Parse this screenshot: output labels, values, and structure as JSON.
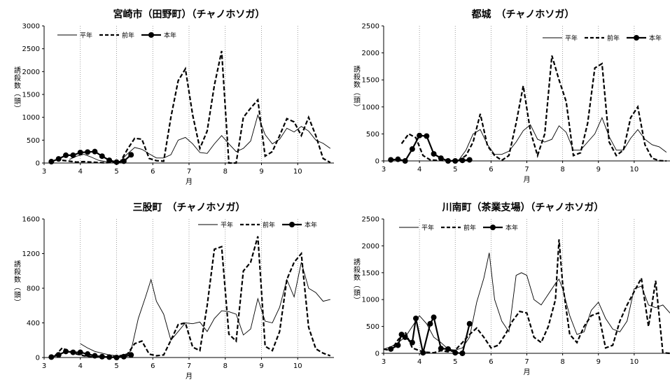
{
  "chart_data": [
    {
      "type": "line",
      "title": "宮崎市（田野町）（チャノホソガ）",
      "xlabel": "月",
      "ylabel": "誘殺数（頭）",
      "xlim": [
        3,
        11
      ],
      "ylim": [
        0,
        3000
      ],
      "yticks": [
        0,
        500,
        1000,
        1500,
        2000,
        2500,
        3000
      ],
      "xticks": [
        3,
        4,
        5,
        6,
        7,
        8,
        9,
        10
      ],
      "vlines": [
        4,
        5,
        6,
        7,
        8,
        9,
        10
      ],
      "legend": "top-left",
      "series": [
        {
          "name": "平年",
          "style": "thin",
          "x": [
            3.7,
            3.9,
            4.1,
            4.3,
            4.5,
            4.7,
            4.9,
            5.1,
            5.3,
            5.5,
            5.7,
            5.9,
            6.1,
            6.3,
            6.5,
            6.7,
            6.9,
            7.1,
            7.3,
            7.5,
            7.7,
            7.9,
            8.1,
            8.3,
            8.5,
            8.7,
            8.9,
            9.1,
            9.3,
            9.5,
            9.7,
            9.9,
            10.1,
            10.3,
            10.5,
            10.7,
            10.9
          ],
          "y": [
            80,
            150,
            190,
            130,
            60,
            30,
            20,
            40,
            200,
            340,
            300,
            200,
            110,
            110,
            180,
            500,
            560,
            420,
            230,
            210,
            420,
            600,
            420,
            250,
            320,
            480,
            1050,
            620,
            420,
            520,
            760,
            680,
            800,
            700,
            500,
            430,
            320
          ]
        },
        {
          "name": "前年",
          "style": "dashed",
          "x": [
            3.5,
            3.7,
            3.9,
            4.1,
            4.3,
            4.5,
            4.7,
            4.9,
            5.1,
            5.3,
            5.5,
            5.7,
            5.9,
            6.1,
            6.3,
            6.5,
            6.7,
            6.9,
            7.1,
            7.3,
            7.5,
            7.7,
            7.9,
            8.1,
            8.3,
            8.5,
            8.7,
            8.9,
            9.1,
            9.3,
            9.5,
            9.7,
            9.9,
            10.1,
            10.3,
            10.5,
            10.7,
            10.9
          ],
          "y": [
            60,
            40,
            20,
            30,
            20,
            10,
            5,
            10,
            20,
            300,
            540,
            520,
            100,
            50,
            40,
            1000,
            1800,
            2060,
            1050,
            320,
            700,
            1700,
            2450,
            0,
            0,
            1000,
            1200,
            1380,
            150,
            250,
            600,
            970,
            900,
            600,
            1000,
            600,
            100,
            10
          ]
        },
        {
          "name": "本年",
          "style": "marker",
          "x": [
            3.2,
            3.4,
            3.6,
            3.8,
            4.0,
            4.2,
            4.4,
            4.6,
            4.8,
            5.0,
            5.2,
            5.4
          ],
          "y": [
            30,
            90,
            170,
            170,
            230,
            240,
            250,
            150,
            60,
            20,
            40,
            180
          ]
        }
      ]
    },
    {
      "type": "line",
      "title": "都城　（チャノホソガ）",
      "xlabel": "月",
      "ylabel": "誘殺数（頭）",
      "xlim": [
        3,
        11
      ],
      "ylim": [
        0,
        2500
      ],
      "yticks": [
        0,
        500,
        1000,
        1500,
        2000,
        2500
      ],
      "xticks": [
        3,
        4,
        5,
        6,
        7,
        8,
        9,
        10
      ],
      "vlines": [
        4,
        5,
        6,
        7,
        8,
        9,
        10
      ],
      "legend": "top-right",
      "series": [
        {
          "name": "平年",
          "style": "thin",
          "x": [
            5.1,
            5.3,
            5.5,
            5.7,
            5.9,
            6.1,
            6.3,
            6.5,
            6.7,
            6.9,
            7.1,
            7.3,
            7.5,
            7.7,
            7.9,
            8.1,
            8.3,
            8.5,
            8.7,
            8.9,
            9.1,
            9.3,
            9.5,
            9.7,
            9.9,
            10.1,
            10.3,
            10.5,
            10.7,
            10.9
          ],
          "y": [
            20,
            200,
            500,
            580,
            300,
            120,
            120,
            180,
            350,
            560,
            670,
            400,
            350,
            400,
            650,
            530,
            200,
            200,
            350,
            500,
            800,
            450,
            200,
            200,
            420,
            580,
            400,
            300,
            260,
            160
          ]
        },
        {
          "name": "前年",
          "style": "dashed",
          "x": [
            3.5,
            3.7,
            3.9,
            4.1,
            4.3,
            4.5,
            4.7,
            4.9,
            5.1,
            5.3,
            5.5,
            5.7,
            5.9,
            6.1,
            6.3,
            6.5,
            6.7,
            6.9,
            7.1,
            7.3,
            7.5,
            7.7,
            7.9,
            8.1,
            8.3,
            8.5,
            8.7,
            8.9,
            9.1,
            9.3,
            9.5,
            9.7,
            9.9,
            10.1,
            10.3,
            10.5,
            10.7,
            10.9
          ],
          "y": [
            320,
            500,
            430,
            100,
            20,
            10,
            5,
            5,
            10,
            100,
            350,
            870,
            280,
            100,
            10,
            100,
            700,
            1390,
            550,
            100,
            500,
            1950,
            1500,
            1100,
            100,
            150,
            700,
            1720,
            1800,
            350,
            100,
            200,
            800,
            1000,
            300,
            50,
            5,
            0
          ]
        },
        {
          "name": "本年",
          "style": "marker",
          "x": [
            3.2,
            3.4,
            3.6,
            3.8,
            4.0,
            4.2,
            4.4,
            4.6,
            4.8,
            5.0,
            5.2,
            5.4
          ],
          "y": [
            20,
            30,
            0,
            220,
            470,
            460,
            130,
            50,
            0,
            0,
            10,
            20
          ]
        }
      ]
    },
    {
      "type": "line",
      "title": "三股町　（チャノホソガ）",
      "xlabel": "月",
      "ylabel": "誘殺数（頭）",
      "xlim": [
        3,
        11
      ],
      "ylim": [
        0,
        1600
      ],
      "yticks": [
        0,
        400,
        800,
        1200,
        1600
      ],
      "xticks": [
        3,
        4,
        5,
        6,
        7,
        8,
        9,
        10
      ],
      "vlines": [
        4,
        5,
        6,
        7,
        8,
        9,
        10
      ],
      "legend": "top-right",
      "series": [
        {
          "name": "平年",
          "style": "thin",
          "x": [
            4.0,
            4.2,
            4.4,
            4.6,
            4.8,
            5.0,
            5.2,
            5.4,
            5.6,
            5.8,
            5.95,
            6.1,
            6.3,
            6.5,
            6.7,
            6.9,
            7.1,
            7.3,
            7.5,
            7.7,
            7.9,
            8.1,
            8.3,
            8.5,
            8.7,
            8.9,
            9.1,
            9.3,
            9.5,
            9.7,
            9.9,
            10.1,
            10.3,
            10.5,
            10.7,
            10.9
          ],
          "y": [
            160,
            110,
            70,
            50,
            30,
            20,
            10,
            80,
            450,
            700,
            900,
            650,
            500,
            200,
            300,
            400,
            390,
            410,
            300,
            450,
            540,
            530,
            500,
            260,
            330,
            680,
            420,
            400,
            580,
            900,
            700,
            1100,
            800,
            750,
            650,
            670
          ]
        },
        {
          "name": "前年",
          "style": "dashed",
          "x": [
            3.3,
            3.5,
            3.7,
            3.9,
            4.1,
            4.3,
            4.5,
            4.7,
            4.9,
            5.1,
            5.3,
            5.5,
            5.7,
            5.9,
            6.1,
            6.3,
            6.5,
            6.7,
            6.9,
            7.1,
            7.3,
            7.5,
            7.7,
            7.9,
            8.1,
            8.3,
            8.5,
            8.7,
            8.9,
            9.1,
            9.3,
            9.5,
            9.7,
            9.9,
            10.1,
            10.3,
            10.5,
            10.7,
            10.9
          ],
          "y": [
            20,
            110,
            70,
            40,
            20,
            10,
            5,
            5,
            10,
            20,
            40,
            160,
            190,
            40,
            20,
            30,
            200,
            380,
            400,
            120,
            80,
            600,
            1250,
            1280,
            270,
            190,
            1000,
            1100,
            1400,
            130,
            80,
            300,
            900,
            1100,
            1200,
            350,
            100,
            50,
            20
          ]
        },
        {
          "name": "本年",
          "style": "marker",
          "x": [
            3.2,
            3.4,
            3.6,
            3.8,
            4.0,
            4.2,
            4.4,
            4.6,
            4.8,
            5.0,
            5.2,
            5.4
          ],
          "y": [
            5,
            30,
            70,
            60,
            60,
            40,
            20,
            10,
            5,
            0,
            10,
            30
          ]
        }
      ]
    },
    {
      "type": "line",
      "title": "川南町（茶業支場）（チャノホソガ）",
      "xlabel": "月",
      "ylabel": "誘殺数（頭）",
      "xlim": [
        3,
        11
      ],
      "ylim": [
        0,
        2500
      ],
      "yticks": [
        0,
        500,
        1000,
        1500,
        2000,
        2500
      ],
      "xticks": [
        3,
        4,
        5,
        6,
        7,
        8,
        9,
        10
      ],
      "vlines": [
        4,
        5,
        6,
        7,
        8,
        9,
        10
      ],
      "legend": "top-left",
      "series": [
        {
          "name": "平年",
          "style": "thin",
          "x": [
            3.0,
            3.2,
            3.4,
            3.6,
            3.8,
            4.0,
            4.2,
            4.4,
            4.6,
            4.8,
            5.0,
            5.2,
            5.4,
            5.6,
            5.8,
            5.95,
            6.1,
            6.3,
            6.5,
            6.7,
            6.85,
            7.0,
            7.2,
            7.4,
            7.6,
            7.8,
            7.9,
            8.0,
            8.2,
            8.4,
            8.6,
            8.8,
            9.0,
            9.2,
            9.4,
            9.6,
            9.8,
            10.0,
            10.2,
            10.4,
            10.6,
            10.8,
            11.0
          ],
          "y": [
            80,
            120,
            200,
            300,
            500,
            700,
            550,
            300,
            200,
            80,
            60,
            100,
            300,
            950,
            1400,
            1870,
            1000,
            600,
            400,
            1450,
            1500,
            1450,
            1000,
            900,
            1100,
            1300,
            1380,
            1200,
            700,
            350,
            400,
            800,
            950,
            650,
            450,
            400,
            600,
            1200,
            1250,
            900,
            850,
            900,
            750
          ]
        },
        {
          "name": "前年",
          "style": "dashed",
          "x": [
            3.0,
            3.2,
            3.4,
            3.6,
            3.8,
            4.0,
            4.2,
            4.4,
            4.6,
            4.8,
            5.0,
            5.2,
            5.4,
            5.6,
            5.8,
            6.0,
            6.2,
            6.4,
            6.6,
            6.8,
            7.0,
            7.2,
            7.4,
            7.6,
            7.8,
            7.9,
            8.0,
            8.2,
            8.4,
            8.6,
            8.8,
            9.0,
            9.2,
            9.4,
            9.6,
            9.8,
            10.0,
            10.2,
            10.4,
            10.6,
            10.8,
            11.0
          ],
          "y": [
            80,
            50,
            250,
            400,
            100,
            50,
            20,
            10,
            50,
            30,
            60,
            200,
            350,
            470,
            300,
            100,
            150,
            350,
            600,
            780,
            750,
            300,
            200,
            500,
            1000,
            2120,
            1300,
            350,
            200,
            500,
            700,
            750,
            100,
            150,
            600,
            900,
            1150,
            1400,
            500,
            1350,
            10,
            0
          ]
        },
        {
          "name": "本年",
          "style": "marker",
          "x": [
            3.2,
            3.4,
            3.5,
            3.6,
            3.8,
            3.9,
            4.1,
            4.3,
            4.4,
            4.6,
            4.8,
            5.0,
            5.2,
            5.4
          ],
          "y": [
            80,
            150,
            350,
            300,
            200,
            650,
            10,
            550,
            670,
            90,
            80,
            10,
            0,
            550
          ]
        }
      ]
    }
  ]
}
